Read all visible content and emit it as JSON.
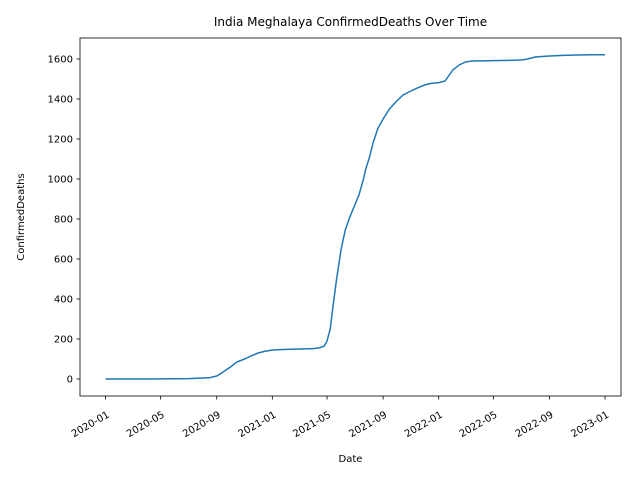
{
  "chart_data": {
    "type": "line",
    "title": "India Meghalaya ConfirmedDeaths Over Time",
    "xlabel": "Date",
    "ylabel": "ConfirmedDeaths",
    "xlim": [
      "2019-11-06",
      "2023-02-05"
    ],
    "ylim": [
      -85,
      1705
    ],
    "x_ticks": [
      "2020-01",
      "2020-05",
      "2020-09",
      "2021-01",
      "2021-05",
      "2021-09",
      "2022-01",
      "2022-05",
      "2022-09",
      "2023-01"
    ],
    "y_ticks": [
      0,
      200,
      400,
      600,
      800,
      1000,
      1200,
      1400,
      1600
    ],
    "grid": false,
    "color": "#1f77b4",
    "series": [
      {
        "x": [
          "2020-01-01",
          "2020-04-01",
          "2020-06-01",
          "2020-07-01",
          "2020-08-15",
          "2020-09-01",
          "2020-09-15",
          "2020-10-01",
          "2020-10-15",
          "2020-11-01",
          "2020-11-15",
          "2020-12-01",
          "2020-12-15",
          "2021-01-01",
          "2021-02-01",
          "2021-03-01",
          "2021-04-01",
          "2021-04-15",
          "2021-04-25",
          "2021-05-01",
          "2021-05-08",
          "2021-05-15",
          "2021-05-22",
          "2021-06-01",
          "2021-06-10",
          "2021-06-20",
          "2021-07-01",
          "2021-07-10",
          "2021-07-20",
          "2021-07-25",
          "2021-08-01",
          "2021-08-10",
          "2021-08-20",
          "2021-09-01",
          "2021-09-15",
          "2021-10-01",
          "2021-10-15",
          "2021-11-01",
          "2021-11-15",
          "2021-12-01",
          "2021-12-15",
          "2022-01-01",
          "2022-01-15",
          "2022-02-01",
          "2022-02-15",
          "2022-03-01",
          "2022-03-15",
          "2022-05-01",
          "2022-06-01",
          "2022-07-01",
          "2022-07-15",
          "2022-08-01",
          "2022-09-01",
          "2022-10-01",
          "2022-11-01",
          "2022-12-01",
          "2023-01-01"
        ],
        "y": [
          0,
          0,
          1,
          2,
          6,
          15,
          35,
          60,
          85,
          100,
          115,
          130,
          138,
          145,
          148,
          150,
          152,
          156,
          165,
          190,
          250,
          380,
          500,
          650,
          745,
          810,
          870,
          920,
          1000,
          1050,
          1100,
          1180,
          1250,
          1300,
          1350,
          1390,
          1420,
          1440,
          1455,
          1470,
          1478,
          1482,
          1490,
          1545,
          1570,
          1585,
          1590,
          1592,
          1593,
          1595,
          1600,
          1610,
          1615,
          1618,
          1620,
          1621,
          1621
        ]
      }
    ]
  }
}
